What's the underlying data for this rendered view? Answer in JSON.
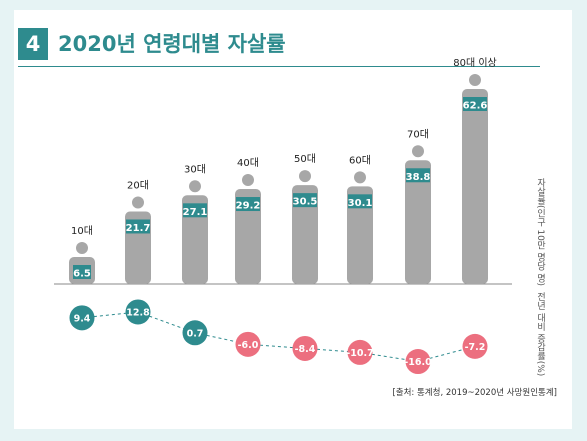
{
  "header": {
    "number": "4",
    "title": "2020년 연령대별 자살률"
  },
  "colors": {
    "accent": "#2e8b8e",
    "figure": "#a7a7a7",
    "negative": "#ec6f7f",
    "background": "#e6f3f4"
  },
  "chart_data": [
    {
      "type": "bar",
      "title": "",
      "categories": [
        "10대",
        "20대",
        "30대",
        "40대",
        "50대",
        "60대",
        "70대",
        "80대 이상"
      ],
      "values": [
        6.5,
        21.7,
        27.1,
        29.2,
        30.5,
        30.1,
        38.8,
        62.6
      ],
      "ylabel": "자살률(인구 10만 명당 명)",
      "marker": "person-figure"
    },
    {
      "type": "line",
      "title": "",
      "categories": [
        "10대",
        "20대",
        "30대",
        "40대",
        "50대",
        "60대",
        "70대",
        "80대 이상"
      ],
      "values": [
        9.4,
        12.8,
        0.7,
        -6.0,
        -8.4,
        -10.7,
        -16.0,
        -7.2
      ],
      "labels": [
        "9.4",
        "12.8",
        "0.7",
        "-6.0",
        "-8.4",
        "-10.7",
        "-16.0",
        "-7.2"
      ],
      "ylabel": "전년 대비 증감률(%)",
      "line_style": "dashed"
    }
  ],
  "source": "[출처: 통계청, 2019~2020년 사망원인통계]"
}
